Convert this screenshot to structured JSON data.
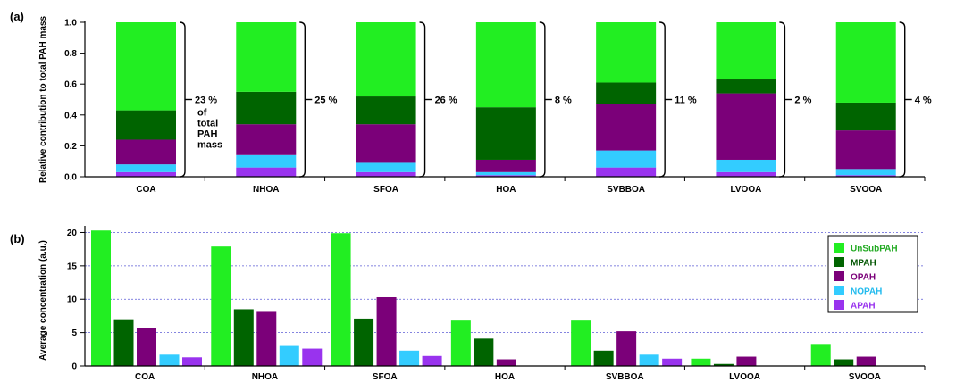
{
  "colors": {
    "UnSubPAH": "#22ee22",
    "MPAH": "#006400",
    "OPAH": "#7b0079",
    "NOPAH": "#33ccff",
    "APAH": "#9933ee"
  },
  "legend_text_colors": {
    "UnSubPAH": "#22aa22",
    "MPAH": "#005500",
    "OPAH": "#7b0079",
    "NOPAH": "#22bbee",
    "APAH": "#9933ee"
  },
  "chart_data": [
    {
      "panel_label": "(a)",
      "type": "bar",
      "stacked": true,
      "ylabel": "Relative contribution to total PAH mass",
      "ylim": [
        0,
        1.0
      ],
      "yticks": [
        "0.0",
        "0.2",
        "0.4",
        "0.6",
        "0.8",
        "1.0"
      ],
      "categories": [
        "COA",
        "NHOA",
        "SFOA",
        "HOA",
        "SVBBOA",
        "LVOOA",
        "SVOOA"
      ],
      "series": [
        {
          "name": "APAH",
          "values": [
            0.03,
            0.06,
            0.03,
            0.01,
            0.06,
            0.03,
            0.01
          ]
        },
        {
          "name": "NOPAH",
          "values": [
            0.05,
            0.08,
            0.06,
            0.02,
            0.11,
            0.08,
            0.04
          ]
        },
        {
          "name": "OPAH",
          "values": [
            0.16,
            0.2,
            0.25,
            0.08,
            0.3,
            0.43,
            0.25
          ]
        },
        {
          "name": "MPAH",
          "values": [
            0.19,
            0.21,
            0.18,
            0.34,
            0.14,
            0.09,
            0.18
          ]
        },
        {
          "name": "UnSubPAH",
          "values": [
            0.57,
            0.45,
            0.48,
            0.55,
            0.39,
            0.37,
            0.52
          ]
        }
      ],
      "annotations": [
        "23 %",
        "25 %",
        "26 %",
        "8 %",
        "11 %",
        "2 %",
        "4 %"
      ],
      "annotation_note": [
        "of",
        "total",
        "PAH",
        "mass"
      ],
      "grid": false
    },
    {
      "panel_label": "(b)",
      "type": "bar",
      "stacked": false,
      "ylabel": "Average concentration (a.u.)",
      "ylim": [
        0,
        21
      ],
      "yticks": [
        "0",
        "5",
        "10",
        "15",
        "20"
      ],
      "categories": [
        "COA",
        "NHOA",
        "SFOA",
        "HOA",
        "SVBBOA",
        "LVOOA",
        "SVOOA"
      ],
      "series": [
        {
          "name": "UnSubPAH",
          "values": [
            20.3,
            17.9,
            19.9,
            6.8,
            6.8,
            1.1,
            3.3
          ]
        },
        {
          "name": "MPAH",
          "values": [
            7.0,
            8.5,
            7.1,
            4.1,
            2.3,
            0.3,
            1.0
          ]
        },
        {
          "name": "OPAH",
          "values": [
            5.7,
            8.1,
            10.3,
            1.0,
            5.2,
            1.4,
            1.4
          ]
        },
        {
          "name": "NOPAH",
          "values": [
            1.7,
            3.0,
            2.3,
            0,
            1.7,
            0,
            0
          ]
        },
        {
          "name": "APAH",
          "values": [
            1.3,
            2.6,
            1.5,
            0,
            1.1,
            0,
            0
          ]
        }
      ],
      "legend": [
        "UnSubPAH",
        "MPAH",
        "OPAH",
        "NOPAH",
        "APAH"
      ],
      "legend_position": "top-right",
      "grid": true
    }
  ]
}
